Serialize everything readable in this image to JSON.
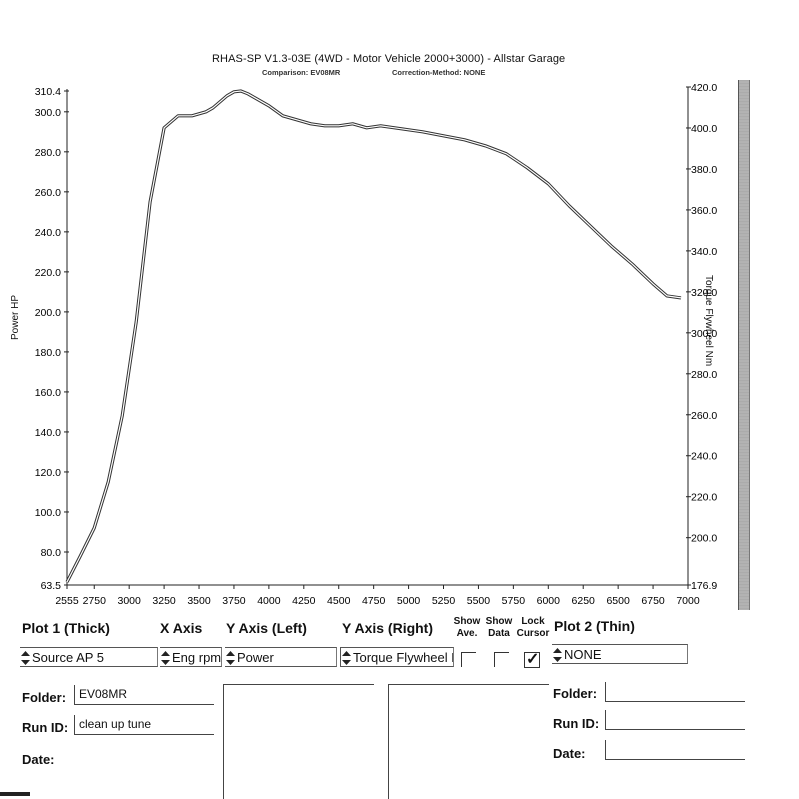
{
  "chart_data": {
    "type": "line",
    "title": "RHAS-SP V1.3-03E  (4WD - Motor Vehicle 2000+3000) - Allstar Garage",
    "subtitle_left": "Comparison: EV08MR",
    "subtitle_right": "Correction-Method: NONE",
    "xlabel": "",
    "ylabel_left": "Power HP",
    "ylabel_right": "Torque Flywheel Nm",
    "xlim": [
      2555,
      7000
    ],
    "ylim_left": [
      63.5,
      310.4
    ],
    "ylim_right": [
      176.9,
      420.0
    ],
    "x_tick_labels": [
      "2555",
      "2750",
      "3000",
      "3250",
      "3500",
      "3750",
      "4000",
      "4250",
      "4500",
      "4750",
      "5000",
      "5250",
      "5500",
      "5750",
      "6000",
      "6250",
      "6500",
      "6750",
      "7000"
    ],
    "y_left_tick_labels": [
      "310.4",
      "300.0",
      "280.0",
      "260.0",
      "240.0",
      "220.0",
      "200.0",
      "180.0",
      "160.0",
      "140.0",
      "120.0",
      "100.0",
      "80.0",
      "63.5"
    ],
    "y_right_tick_labels": [
      "420.0",
      "400.0",
      "380.0",
      "360.0",
      "340.0",
      "320.0",
      "300.0",
      "280.0",
      "260.0",
      "240.0",
      "220.0",
      "200.0",
      "176.9"
    ],
    "grid": false,
    "series": [
      {
        "axis": "left",
        "x": [
          2555,
          2650,
          2750,
          2850,
          2950,
          3050,
          3150,
          3250,
          3350,
          3450,
          3550,
          3600,
          3650,
          3700,
          3750,
          3800,
          3850,
          3900,
          3950,
          4000,
          4100,
          4200,
          4300,
          4400,
          4500,
          4600,
          4700,
          4800,
          4900,
          5000,
          5100,
          5250,
          5400,
          5550,
          5700,
          5850,
          6000,
          6150,
          6300,
          6450,
          6600,
          6750,
          6850,
          6950
        ],
        "values": [
          65,
          78,
          92,
          115,
          148,
          195,
          255,
          292,
          298,
          298,
          300,
          302,
          305,
          308,
          310,
          310.4,
          309,
          307,
          305,
          303,
          298,
          296,
          294,
          293,
          293,
          294,
          292,
          293,
          292,
          291,
          290,
          288,
          286,
          283,
          279,
          272,
          264,
          253,
          243,
          233,
          224,
          214,
          208,
          207
        ]
      }
    ]
  },
  "panel": {
    "plot1_header": "Plot 1 (Thick)",
    "xaxis_header": "X Axis",
    "yleft_header": "Y Axis (Left)",
    "yright_header": "Y Axis (Right)",
    "show_ave": "Show\nAve.",
    "show_data": "Show\nData",
    "lock_cursor": "Lock\nCursor",
    "plot2_header": "Plot 2 (Thin)",
    "plot1_source": "Source AP 5",
    "xaxis_value": "Eng rpm",
    "yleft_value": "Power",
    "yright_value": "Torque Flywheel Nm",
    "plot2_value": "NONE",
    "lock_cursor_checked": true,
    "folder_label": "Folder:",
    "runid_label": "Run ID:",
    "date_label": "Date:",
    "plot1_folder": "EV08MR",
    "plot1_runid": "clean up tune",
    "plot1_date": "",
    "plot2_folder_label": "Folder:",
    "plot2_runid_label": "Run ID:",
    "plot2_date_label": "Date:"
  }
}
